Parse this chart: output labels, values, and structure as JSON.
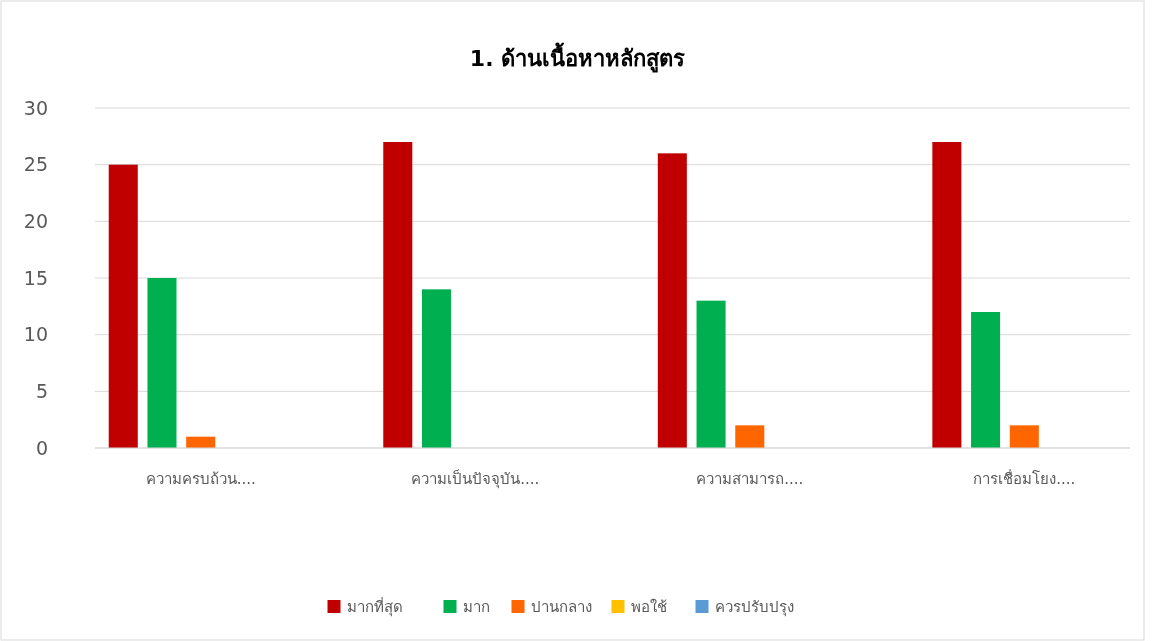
{
  "chart_data": {
    "type": "bar",
    "title": "1. ด้านเนื้อหาหลักสูตร",
    "categories": [
      "ความครบถ้วน....",
      "ความเป็นปัจจุบัน....",
      "ความสามารถ....",
      "การเชื่อมโยง...."
    ],
    "series": [
      {
        "name": "มากที่สุด",
        "color": "#c00000",
        "values": [
          25,
          27,
          26,
          27
        ]
      },
      {
        "name": "มาก",
        "color": "#00b050",
        "values": [
          15,
          14,
          13,
          12
        ]
      },
      {
        "name": "ปานกลาง",
        "color": "#ff6600",
        "values": [
          1,
          null,
          2,
          2
        ]
      },
      {
        "name": "พอใช้",
        "color": "#ffc000",
        "values": [
          null,
          null,
          null,
          null
        ]
      },
      {
        "name": "ควรปรับปรุง",
        "color": "#5b9bd5",
        "values": [
          null,
          null,
          null,
          null
        ]
      }
    ],
    "ylim": [
      0,
      30
    ],
    "yticks": [
      0,
      5,
      10,
      15,
      20,
      25,
      30
    ],
    "grid": "y",
    "legend": "bottom"
  }
}
